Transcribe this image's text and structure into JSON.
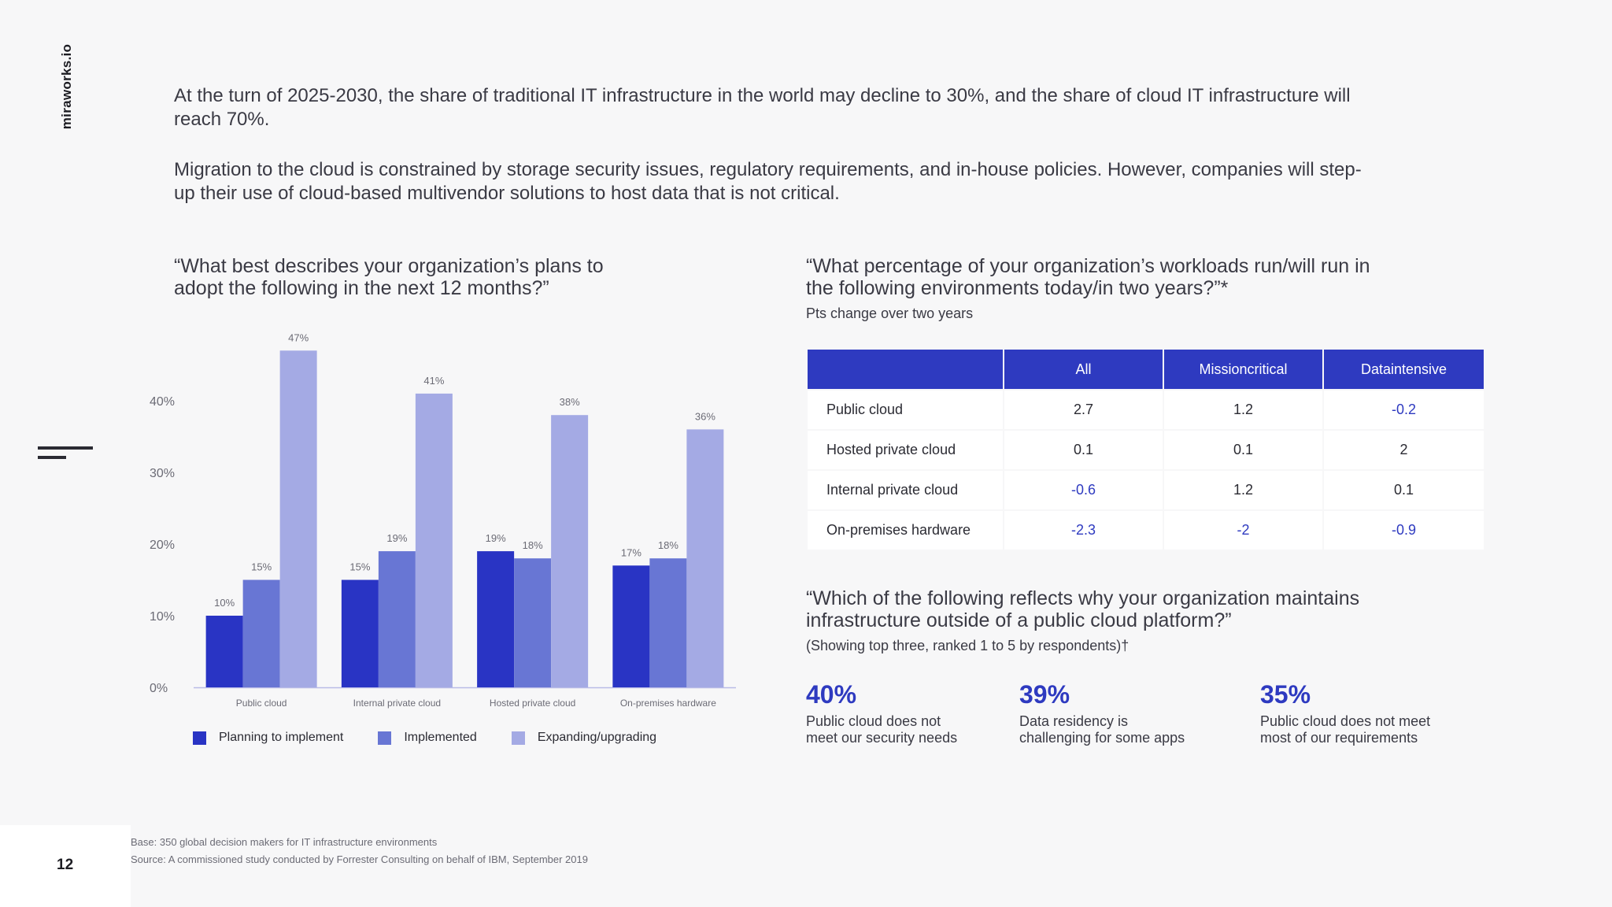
{
  "brand": "miraworks.io",
  "page_number": "12",
  "intro": {
    "p1": "At the turn of 2025-2030, the share of traditional IT infrastructure in the world may decline to 30%, and the share of cloud IT infrastructure will reach 70%.",
    "p2": "Migration to the cloud is constrained by storage security issues, regulatory requirements, and in-house policies. However, companies will step-up their use of cloud-based multivendor solutions to host data that is not critical."
  },
  "chart_title": "“What best describes your organization’s plans to adopt the following in the next 12 months?”",
  "chart_data": {
    "type": "bar",
    "categories": [
      "Public cloud",
      "Internal private cloud",
      "Hosted private cloud",
      "On-premises hardware"
    ],
    "series": [
      {
        "name": "Planning to implement",
        "color": "#2934c4",
        "values": [
          10,
          15,
          19,
          17
        ]
      },
      {
        "name": "Implemented",
        "color": "#6876d4",
        "values": [
          15,
          19,
          18,
          18
        ]
      },
      {
        "name": "Expanding/upgrading",
        "color": "#a4aae4",
        "values": [
          47,
          41,
          38,
          36
        ]
      }
    ],
    "yticks": [
      "0%",
      "10%",
      "20%",
      "30%",
      "40%"
    ],
    "ylim": [
      0,
      50
    ],
    "value_suffix": "%",
    "legend_position": "bottom"
  },
  "table_section": {
    "title": "“What percentage of your organization’s workloads run/will run in the following environments today/in two years?”*",
    "subtitle": "Pts change over two years",
    "columns": [
      "",
      "All",
      "Missioncritical",
      "Dataintensive"
    ],
    "rows": [
      {
        "label": "Public cloud",
        "values": [
          "2.7",
          "1.2",
          "-0.2"
        ]
      },
      {
        "label": "Hosted private cloud",
        "values": [
          "0.1",
          "0.1",
          "2"
        ]
      },
      {
        "label": "Internal private cloud",
        "values": [
          "-0.6",
          "1.2",
          "0.1"
        ]
      },
      {
        "label": "On-premises hardware",
        "values": [
          "-2.3",
          "-2",
          "-0.9"
        ]
      }
    ]
  },
  "reasons": {
    "title": "“Which of the following reflects why your organization maintains infrastructure outside of a public cloud platform?”",
    "subtitle": "(Showing top three, ranked 1 to 5 by respondents)†",
    "items": [
      {
        "pct": "40%",
        "line1": "Public cloud does not",
        "line2": "meet our security needs"
      },
      {
        "pct": "39%",
        "line1": "Data residency is",
        "line2": "challenging for some apps"
      },
      {
        "pct": "35%",
        "line1": "Public cloud does not meet",
        "line2": "most of our requirements"
      }
    ]
  },
  "footnotes": {
    "base": "Base: 350 global decision makers for IT infrastructure environments",
    "source": "Source: A commissioned study conducted by Forrester Consulting on behalf of IBM, September 2019"
  },
  "colors": {
    "accent": "#2e3ac0",
    "planning": "#2934c4",
    "implemented": "#6876d4",
    "expanding": "#a4aae4"
  }
}
